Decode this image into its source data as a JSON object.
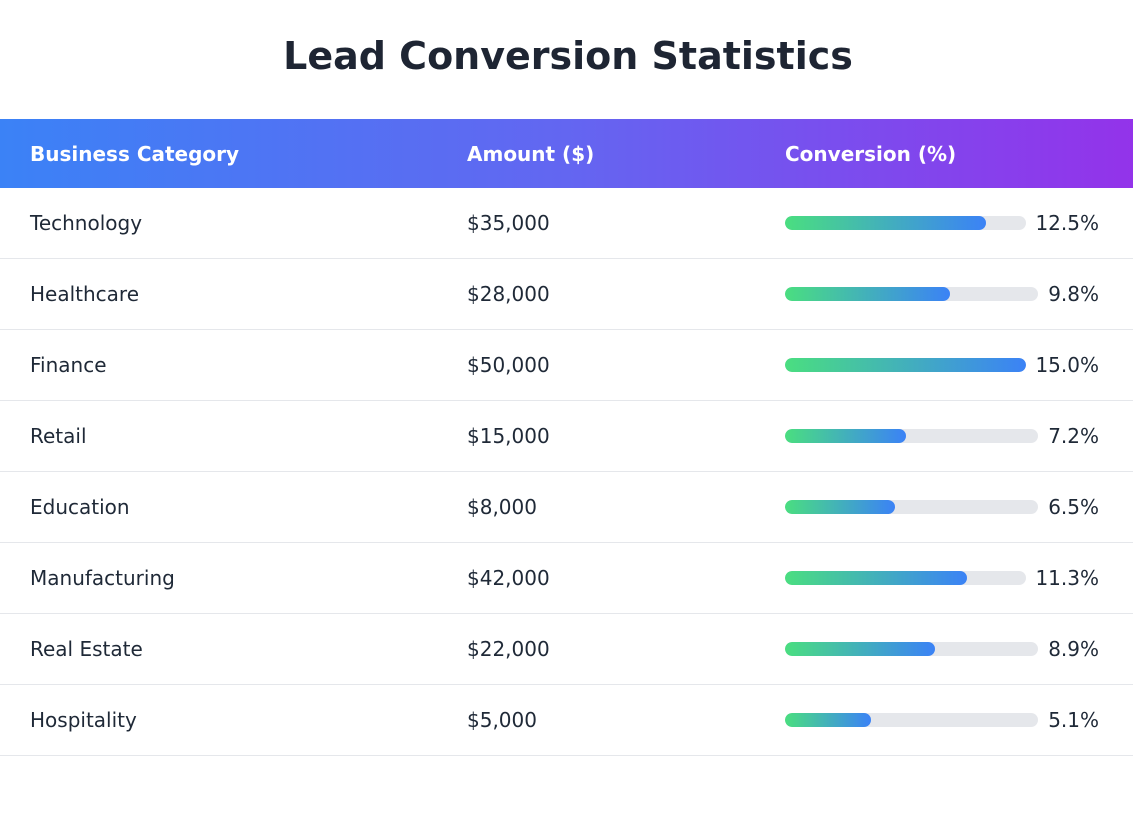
{
  "chart_data": {
    "type": "table",
    "title": "Lead Conversion Statistics",
    "columns": [
      "Business Category",
      "Amount ($)",
      "Conversion (%)"
    ],
    "rows": [
      {
        "category": "Technology",
        "amount": "$35,000",
        "conversion": 12.5,
        "conversion_label": "12.5%"
      },
      {
        "category": "Healthcare",
        "amount": "$28,000",
        "conversion": 9.8,
        "conversion_label": "9.8%"
      },
      {
        "category": "Finance",
        "amount": "$50,000",
        "conversion": 15.0,
        "conversion_label": "15.0%"
      },
      {
        "category": "Retail",
        "amount": "$15,000",
        "conversion": 7.2,
        "conversion_label": "7.2%"
      },
      {
        "category": "Education",
        "amount": "$8,000",
        "conversion": 6.5,
        "conversion_label": "6.5%"
      },
      {
        "category": "Manufacturing",
        "amount": "$42,000",
        "conversion": 11.3,
        "conversion_label": "11.3%"
      },
      {
        "category": "Real Estate",
        "amount": "$22,000",
        "conversion": 8.9,
        "conversion_label": "8.9%"
      },
      {
        "category": "Hospitality",
        "amount": "$5,000",
        "conversion": 5.1,
        "conversion_label": "5.1%"
      }
    ],
    "bar_max": 15.0,
    "colors": {
      "header_gradient": [
        "#3b82f6",
        "#6366f1",
        "#9333ea"
      ],
      "bar_gradient": [
        "#4ade80",
        "#3b82f6"
      ],
      "track": "#e5e7eb"
    }
  }
}
